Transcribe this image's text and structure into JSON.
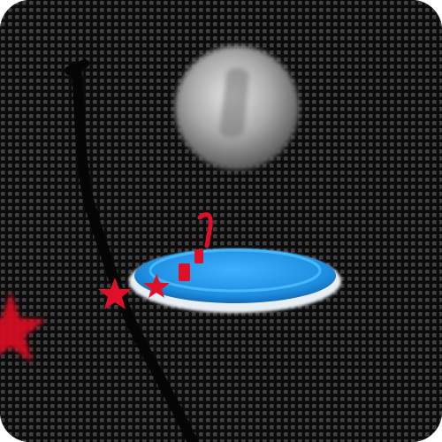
{
  "app": {
    "icon_name": "game-app-icon"
  },
  "scene": {
    "background_color": "#0b0b0b",
    "dot_color": "#6a6a6a",
    "ball_color": "#bdbdbd",
    "platform_color": "#1e8fe0",
    "platform_rim_color": "#e8eef5",
    "star_color": "#e0102a",
    "track_color": "#050505"
  }
}
